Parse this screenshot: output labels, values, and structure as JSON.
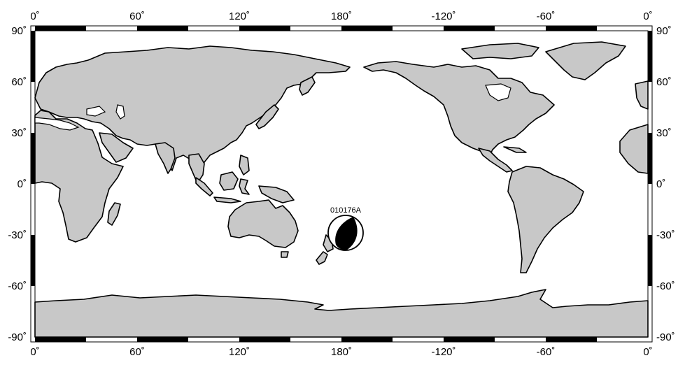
{
  "map": {
    "projection": "cylindrical-equidistant",
    "center_longitude": 180,
    "land_color": "#c8c8c8",
    "water_color": "#ffffff",
    "frame_color": "#000000",
    "longitude_ticks": [
      {
        "lon": 0,
        "label": "0˚"
      },
      {
        "lon": 60,
        "label": "60˚"
      },
      {
        "lon": 120,
        "label": "120˚"
      },
      {
        "lon": 180,
        "label": "180˚"
      },
      {
        "lon": 240,
        "label": "-120˚"
      },
      {
        "lon": 300,
        "label": "-60˚"
      },
      {
        "lon": 360,
        "label": "0˚"
      }
    ],
    "latitude_ticks": [
      {
        "lat": 90,
        "label": "90˚"
      },
      {
        "lat": 60,
        "label": "60˚"
      },
      {
        "lat": 30,
        "label": "30˚"
      },
      {
        "lat": 0,
        "label": "0˚"
      },
      {
        "lat": -30,
        "label": "-30˚"
      },
      {
        "lat": -60,
        "label": "-60˚"
      },
      {
        "lat": -90,
        "label": "-90˚"
      }
    ],
    "event": {
      "label": "010176A",
      "lon": 184,
      "lat": -30,
      "type": "focal-mechanism-beachball"
    }
  }
}
